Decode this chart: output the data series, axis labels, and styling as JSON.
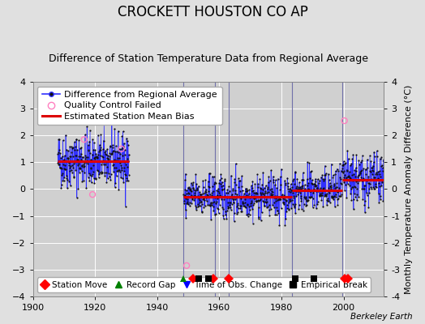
{
  "title": "CROCKETT HOUSTON CO AP",
  "subtitle": "Difference of Station Temperature Data from Regional Average",
  "ylabel": "Monthly Temperature Anomaly Difference (°C)",
  "credit": "Berkeley Earth",
  "xlim": [
    1900,
    2013
  ],
  "ylim": [
    -4,
    4
  ],
  "yticks": [
    -4,
    -3,
    -2,
    -1,
    0,
    1,
    2,
    3,
    4
  ],
  "xticks": [
    1900,
    1920,
    1940,
    1960,
    1980,
    2000
  ],
  "bg_color": "#e0e0e0",
  "plot_bg_color": "#d0d0d0",
  "grid_color": "#ffffff",
  "data_color": "#3030ff",
  "dot_color": "#101010",
  "bias_color": "#dd0000",
  "qc_color": "#ff80c0",
  "segment1_start": 1908.0,
  "segment1_end": 1931.0,
  "segment1_bias": 1.05,
  "segment2_start": 1948.5,
  "segment2_end": 1983.5,
  "segment2_bias": -0.28,
  "segment3_start": 1983.5,
  "segment3_end": 1999.5,
  "segment3_bias": -0.05,
  "segment4_start": 1999.5,
  "segment4_end": 2013.0,
  "segment4_bias": 0.35,
  "station_moves": [
    1951.5,
    1958.0,
    1963.0,
    2000.5,
    2001.5
  ],
  "record_gaps": [
    1948.5
  ],
  "obs_changes": [],
  "empirical_breaks": [
    1953.5,
    1956.5,
    1984.5,
    1990.5
  ],
  "vert_lines": [
    1948.5,
    1958.5,
    1963.0,
    1983.5,
    1999.5
  ],
  "title_fontsize": 12,
  "subtitle_fontsize": 9,
  "legend_fontsize": 8,
  "axis_fontsize": 8
}
